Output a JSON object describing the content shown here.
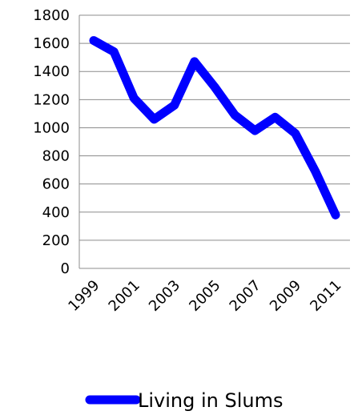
{
  "chart_data": {
    "type": "line",
    "title": "",
    "xlabel": "",
    "ylabel": "",
    "x": [
      1999,
      2000,
      2001,
      2002,
      2003,
      2004,
      2005,
      2006,
      2007,
      2008,
      2009,
      2010,
      2011
    ],
    "x_tick_labels": [
      "1999",
      "2001",
      "2003",
      "2005",
      "2007",
      "2009",
      "2011"
    ],
    "ylim": [
      0,
      1800
    ],
    "y_ticks": [
      0,
      200,
      400,
      600,
      800,
      1000,
      1200,
      1400,
      1600,
      1800
    ],
    "grid": true,
    "legend_position": "bottom",
    "series": [
      {
        "name": "Living in Slums",
        "color": "#0000ff",
        "values": [
          1620,
          1540,
          1210,
          1060,
          1160,
          1470,
          1290,
          1090,
          980,
          1075,
          960,
          690,
          380
        ]
      }
    ]
  }
}
